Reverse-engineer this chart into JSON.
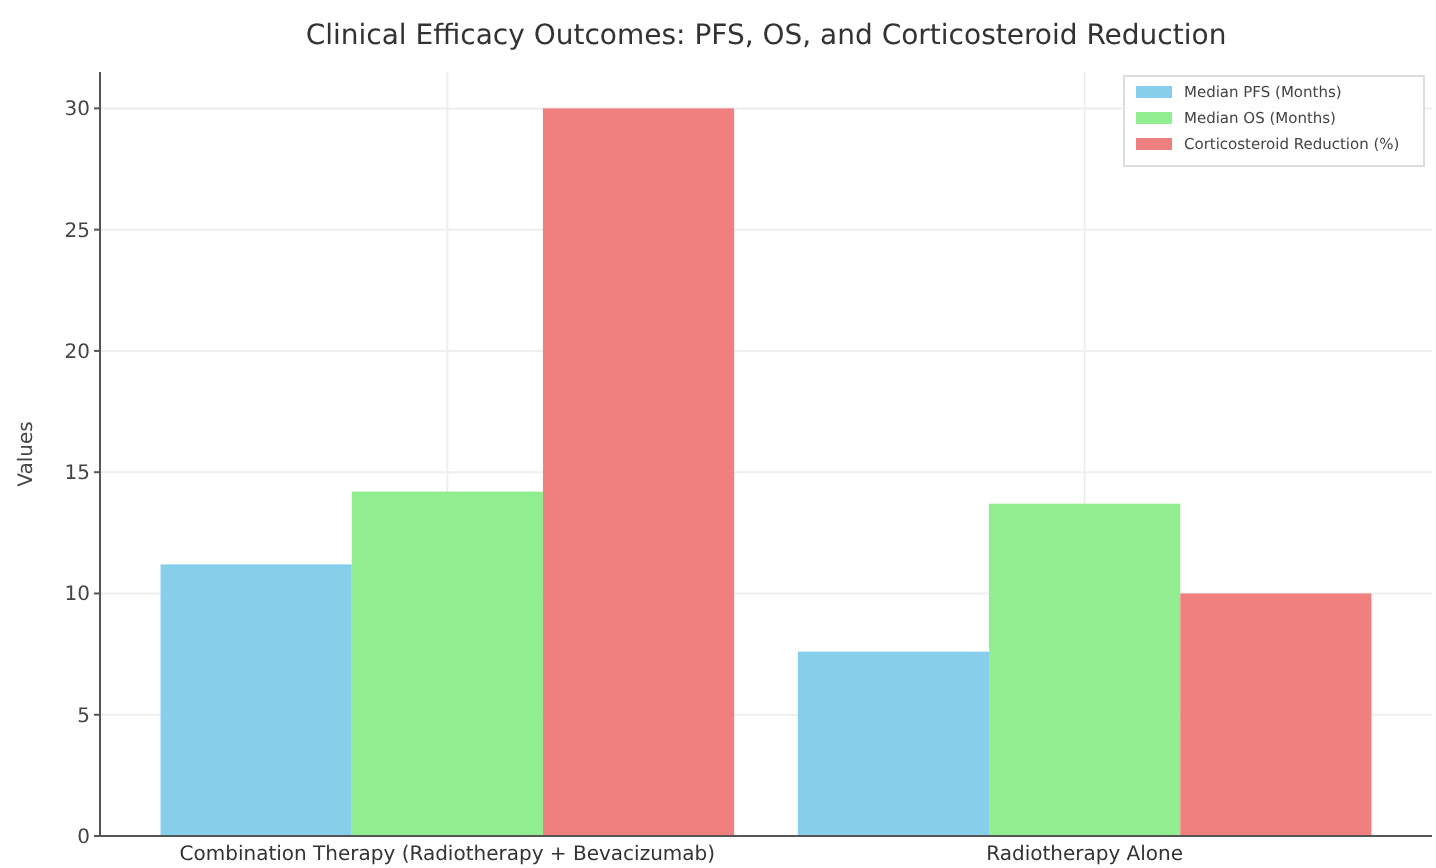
{
  "chart_data": {
    "type": "bar",
    "title": "Clinical Efficacy Outcomes: PFS, OS, and Corticosteroid Reduction",
    "ylabel": "Values",
    "categories": [
      "Combination Therapy (Radiotherapy + Bevacizumab)",
      "Radiotherapy Alone"
    ],
    "series": [
      {
        "name": "Median PFS (Months)",
        "color": "#87ceeb",
        "values": [
          11.2,
          7.6
        ]
      },
      {
        "name": "Median OS (Months)",
        "color": "#90ee90",
        "values": [
          14.2,
          13.7
        ]
      },
      {
        "name": "Corticosteroid Reduction (%)",
        "color": "#f08080",
        "values": [
          30,
          10
        ]
      }
    ],
    "ylim": [
      0,
      31.5
    ],
    "yticks": [
      0,
      5,
      10,
      15,
      20,
      25,
      30
    ],
    "grid": true,
    "legend": "top right"
  }
}
